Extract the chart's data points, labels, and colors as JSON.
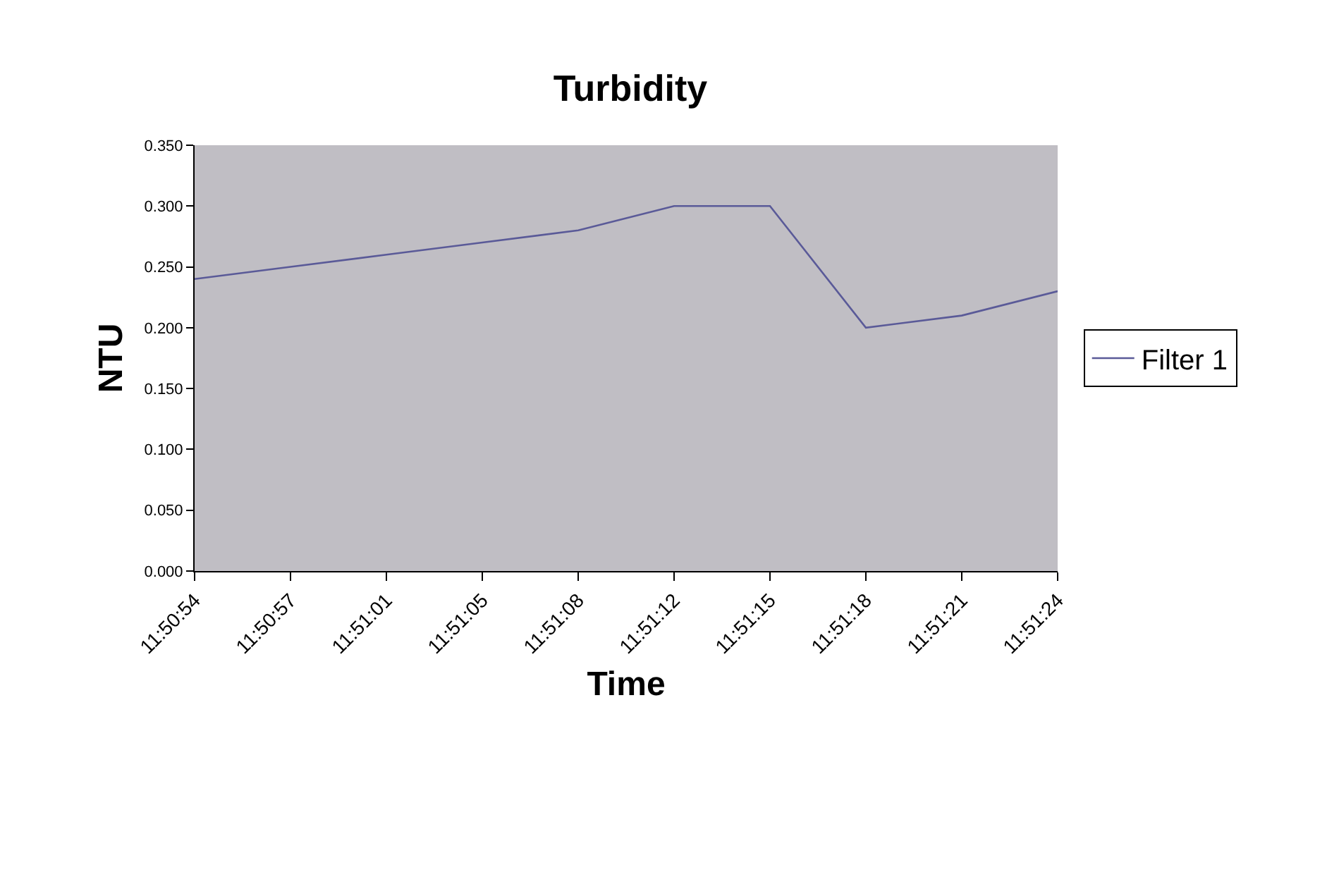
{
  "chart_data": {
    "type": "line",
    "title": "Turbidity",
    "xlabel": "Time",
    "ylabel": "NTU",
    "categories": [
      "11:50:54",
      "11:50:57",
      "11:51:01",
      "11:51:05",
      "11:51:08",
      "11:51:12",
      "11:51:15",
      "11:51:18",
      "11:51:21",
      "11:51:24"
    ],
    "series": [
      {
        "name": "Filter 1",
        "color": "#5a5a98",
        "values": [
          0.24,
          0.25,
          0.26,
          0.27,
          0.28,
          0.3,
          0.3,
          0.2,
          0.21,
          0.23
        ]
      }
    ],
    "ylim": [
      0,
      0.35
    ],
    "yticks": [
      {
        "value": 0,
        "label": "0.000"
      },
      {
        "value": 0.05,
        "label": "0.050"
      },
      {
        "value": 0.1,
        "label": "0.100"
      },
      {
        "value": 0.15,
        "label": "0.150"
      },
      {
        "value": 0.2,
        "label": "0.200"
      },
      {
        "value": 0.25,
        "label": "0.250"
      },
      {
        "value": 0.3,
        "label": "0.300"
      },
      {
        "value": 0.35,
        "label": "0.350"
      }
    ],
    "grid": false,
    "legend": "right",
    "marker": "none",
    "line_style": "solid"
  }
}
